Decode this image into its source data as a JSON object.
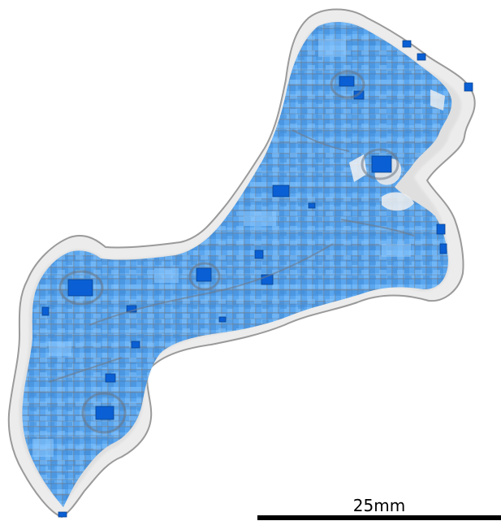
{
  "scene": {
    "description_icon": "3d-bone-render",
    "colors": {
      "background": "#ffffff",
      "shell_fill": "#ececec",
      "shell_edge": "#8e8e8e",
      "voxel_light": "#6db3f5",
      "voxel_mid": "#4a9be8",
      "voxel_dark": "#0a5bd0",
      "voxel_shadow": "#7d8796"
    }
  },
  "scale_bar": {
    "label": "25mm"
  }
}
